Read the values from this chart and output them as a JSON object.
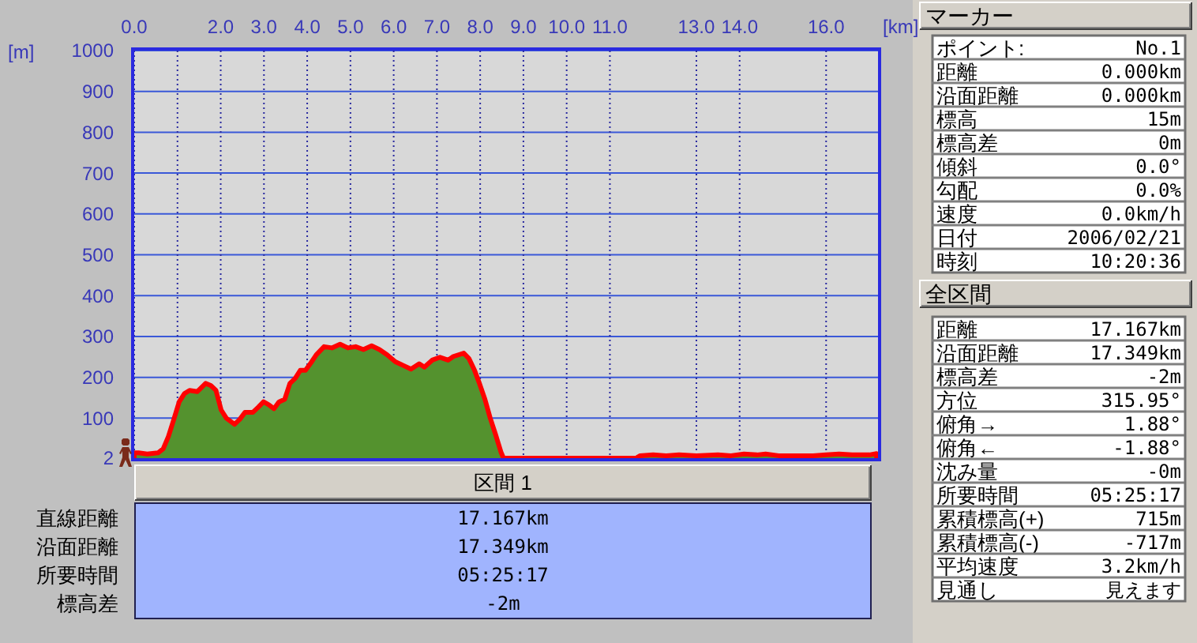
{
  "chart_data": [
    {
      "type": "area",
      "xlabel": "[km]",
      "ylabel": "[m]",
      "xlim": [
        0,
        17.2
      ],
      "ylim": [
        2,
        1000
      ],
      "xticks": [
        {
          "value": 0,
          "label": "0.0"
        },
        {
          "value": 1,
          "label": null
        },
        {
          "value": 2,
          "label": "2.0"
        },
        {
          "value": 3,
          "label": "3.0"
        },
        {
          "value": 4,
          "label": "4.0"
        },
        {
          "value": 5,
          "label": "5.0"
        },
        {
          "value": 6,
          "label": "6.0"
        },
        {
          "value": 7,
          "label": "7.0"
        },
        {
          "value": 8,
          "label": "8.0"
        },
        {
          "value": 9,
          "label": "9.0"
        },
        {
          "value": 10,
          "label": "10.0"
        },
        {
          "value": 11,
          "label": "11.0"
        },
        {
          "value": 13,
          "label": "13.0"
        },
        {
          "value": 14,
          "label": "14.0"
        },
        {
          "value": 16,
          "label": "16.0"
        }
      ],
      "yticks": [
        2,
        100,
        200,
        300,
        400,
        500,
        600,
        700,
        800,
        900,
        1000
      ],
      "grid": true,
      "x": [
        0,
        0.1,
        0.3,
        0.55,
        0.67,
        0.79,
        0.91,
        1.04,
        1.16,
        1.28,
        1.46,
        1.65,
        1.77,
        1.89,
        2.01,
        2.13,
        2.32,
        2.44,
        2.56,
        2.74,
        2.87,
        2.99,
        3.11,
        3.23,
        3.35,
        3.48,
        3.6,
        3.72,
        3.84,
        3.96,
        4.09,
        4.21,
        4.39,
        4.57,
        4.76,
        4.94,
        5.12,
        5.3,
        5.49,
        5.67,
        5.85,
        6.04,
        6.22,
        6.4,
        6.59,
        6.71,
        6.89,
        7.07,
        7.26,
        7.38,
        7.62,
        7.74,
        7.87,
        7.99,
        8.11,
        8.23,
        8.35,
        8.48,
        8.54,
        9.5,
        10.5,
        11.6,
        11.7,
        12.0,
        12.3,
        12.6,
        13.0,
        13.5,
        13.8,
        14.1,
        14.4,
        14.6,
        14.9,
        15.3,
        15.7,
        16.0,
        16.3,
        16.6,
        17.0,
        17.167
      ],
      "series": [
        {
          "type": "area",
          "color": "#54922e",
          "values": [
            15,
            15,
            12,
            15,
            25,
            55,
            95,
            140,
            160,
            168,
            165,
            185,
            180,
            168,
            120,
            100,
            85,
            97,
            114,
            114,
            127,
            140,
            133,
            123,
            140,
            146,
            185,
            197,
            217,
            217,
            236,
            255,
            275,
            272,
            281,
            272,
            275,
            268,
            277,
            268,
            255,
            238,
            229,
            220,
            233,
            225,
            242,
            249,
            242,
            251,
            259,
            246,
            217,
            183,
            146,
            101,
            62,
            17,
            2,
            2,
            2,
            2,
            8,
            10,
            8,
            10,
            8,
            10,
            8,
            12,
            10,
            12,
            8,
            8,
            8,
            10,
            12,
            10,
            10,
            13
          ]
        }
      ]
    },
    {
      "type": "other",
      "title": "区間 1",
      "annotations": [
        "直線距離",
        "17.167km",
        "沿面距離",
        "17.349km",
        "所要時間",
        "05:25:17",
        "標高差",
        "-2m"
      ]
    },
    {
      "type": "other",
      "title": "マーカー",
      "annotations": [
        "ポイント:",
        "No.1",
        "距離",
        "0.000km",
        "沿面距離",
        "0.000km",
        "標高",
        "15m",
        "標高差",
        "0m",
        "傾斜",
        "0.0°",
        "勾配",
        "0.0%",
        "速度",
        "0.0km/h",
        "日付",
        "2006/02/21",
        "時刻",
        "10:20:36"
      ]
    },
    {
      "type": "other",
      "title": "全区間",
      "annotations": [
        "距離",
        "17.167km",
        "沿面距離",
        "17.349km",
        "標高差",
        "-2m",
        "方位",
        "315.95°",
        "俯角→",
        "1.88°",
        "俯角←",
        "-1.88°",
        "沈み量",
        "-0m",
        "所要時間",
        "05:25:17",
        "累積標高(+)",
        "715m",
        "累積標高(-)",
        "-717m",
        "平均速度",
        "3.2km/h",
        "見通し",
        "見えます"
      ]
    }
  ]
}
